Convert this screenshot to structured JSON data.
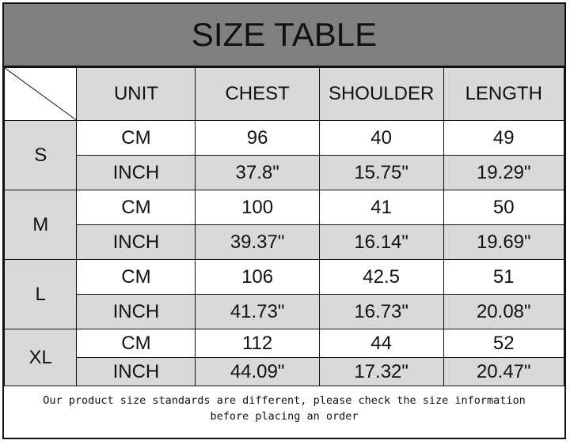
{
  "title": "SIZE TABLE",
  "headers": [
    "UNIT",
    "CHEST",
    "SHOULDER",
    "LENGTH"
  ],
  "sizes": [
    {
      "size": "S",
      "rows": [
        {
          "unit": "CM",
          "chest": "96",
          "shoulder": "40",
          "length": "49"
        },
        {
          "unit": "INCH",
          "chest": "37.8\"",
          "shoulder": "15.75\"",
          "length": "19.29\""
        }
      ]
    },
    {
      "size": "M",
      "rows": [
        {
          "unit": "CM",
          "chest": "100",
          "shoulder": "41",
          "length": "50"
        },
        {
          "unit": "INCH",
          "chest": "39.37\"",
          "shoulder": "16.14\"",
          "length": "19.69\""
        }
      ]
    },
    {
      "size": "L",
      "rows": [
        {
          "unit": "CM",
          "chest": "106",
          "shoulder": "42.5",
          "length": "51"
        },
        {
          "unit": "INCH",
          "chest": "41.73\"",
          "shoulder": "16.73\"",
          "length": "20.08\""
        }
      ]
    },
    {
      "size": "XL",
      "rows": [
        {
          "unit": "CM",
          "chest": "112",
          "shoulder": "44",
          "length": "52"
        },
        {
          "unit": "INCH",
          "chest": "44.09\"",
          "shoulder": "17.32\"",
          "length": "20.47\""
        }
      ]
    }
  ],
  "note_line1": "Our product size standards are different, please check the size information",
  "note_line2": "before placing an order",
  "colors": {
    "title_bg": "#808080",
    "shaded_cell": "#d9d9d9",
    "border": "#111111"
  }
}
